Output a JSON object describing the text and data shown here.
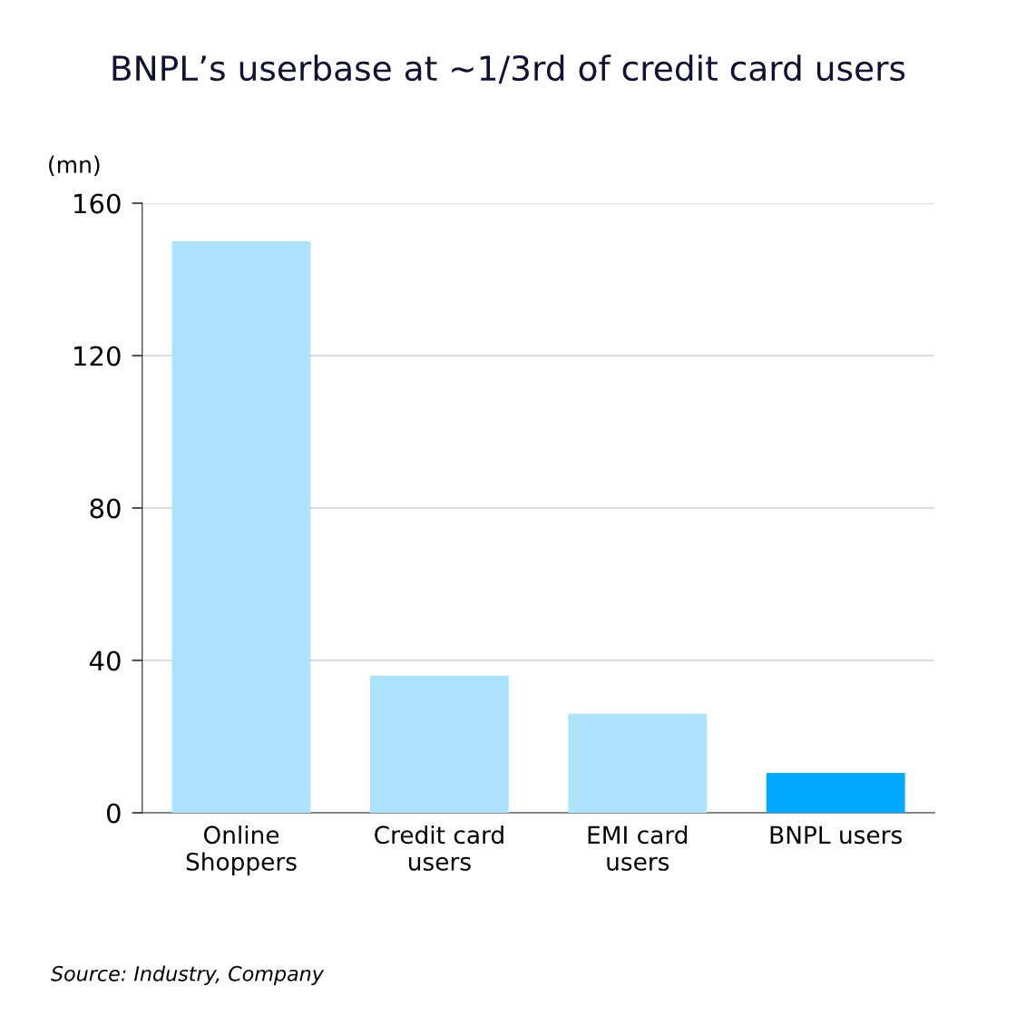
{
  "chart_data": {
    "type": "bar",
    "title": "BNPL’s userbase at ~1/3rd of credit card users",
    "ylabel": "(mn)",
    "categories": [
      "Online\nShoppers",
      "Credit card\nusers",
      "EMI card\nusers",
      "BNPL users"
    ],
    "values": [
      150,
      36,
      26,
      10.5
    ],
    "colors": [
      "#aee3fd",
      "#aee3fd",
      "#aee3fd",
      "#00aaff"
    ],
    "ylim": [
      0,
      160
    ],
    "yticks": [
      0,
      40,
      80,
      120,
      160
    ],
    "grid": "y",
    "annotations": [
      "Source: Industry, Company"
    ]
  }
}
